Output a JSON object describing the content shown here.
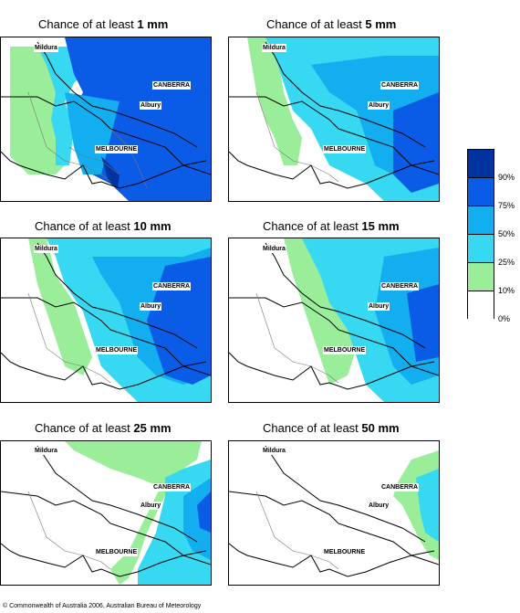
{
  "panels": [
    {
      "title_prefix": "Chance of at least ",
      "amount": "1 mm"
    },
    {
      "title_prefix": "Chance of at least ",
      "amount": "5 mm"
    },
    {
      "title_prefix": "Chance of at least ",
      "amount": "10 mm"
    },
    {
      "title_prefix": "Chance of at least ",
      "amount": "15 mm"
    },
    {
      "title_prefix": "Chance of at least ",
      "amount": "25 mm"
    },
    {
      "title_prefix": "Chance of at least ",
      "amount": "50 mm"
    }
  ],
  "places": {
    "mildura": "Mildura",
    "canberra": "CANBERRA",
    "albury": "Albury",
    "melbourne": "MELBOURNE"
  },
  "legend": {
    "labels": [
      "90%",
      "75%",
      "50%",
      "25%",
      "10%",
      "0%"
    ],
    "colors": [
      "#0033a0",
      "#0a5ce6",
      "#12aef0",
      "#36d8f2",
      "#9aee9a",
      "#ffffff"
    ]
  },
  "copyright": "© Commonwealth of Australia 2006, Australian Bureau of Meteorology"
}
